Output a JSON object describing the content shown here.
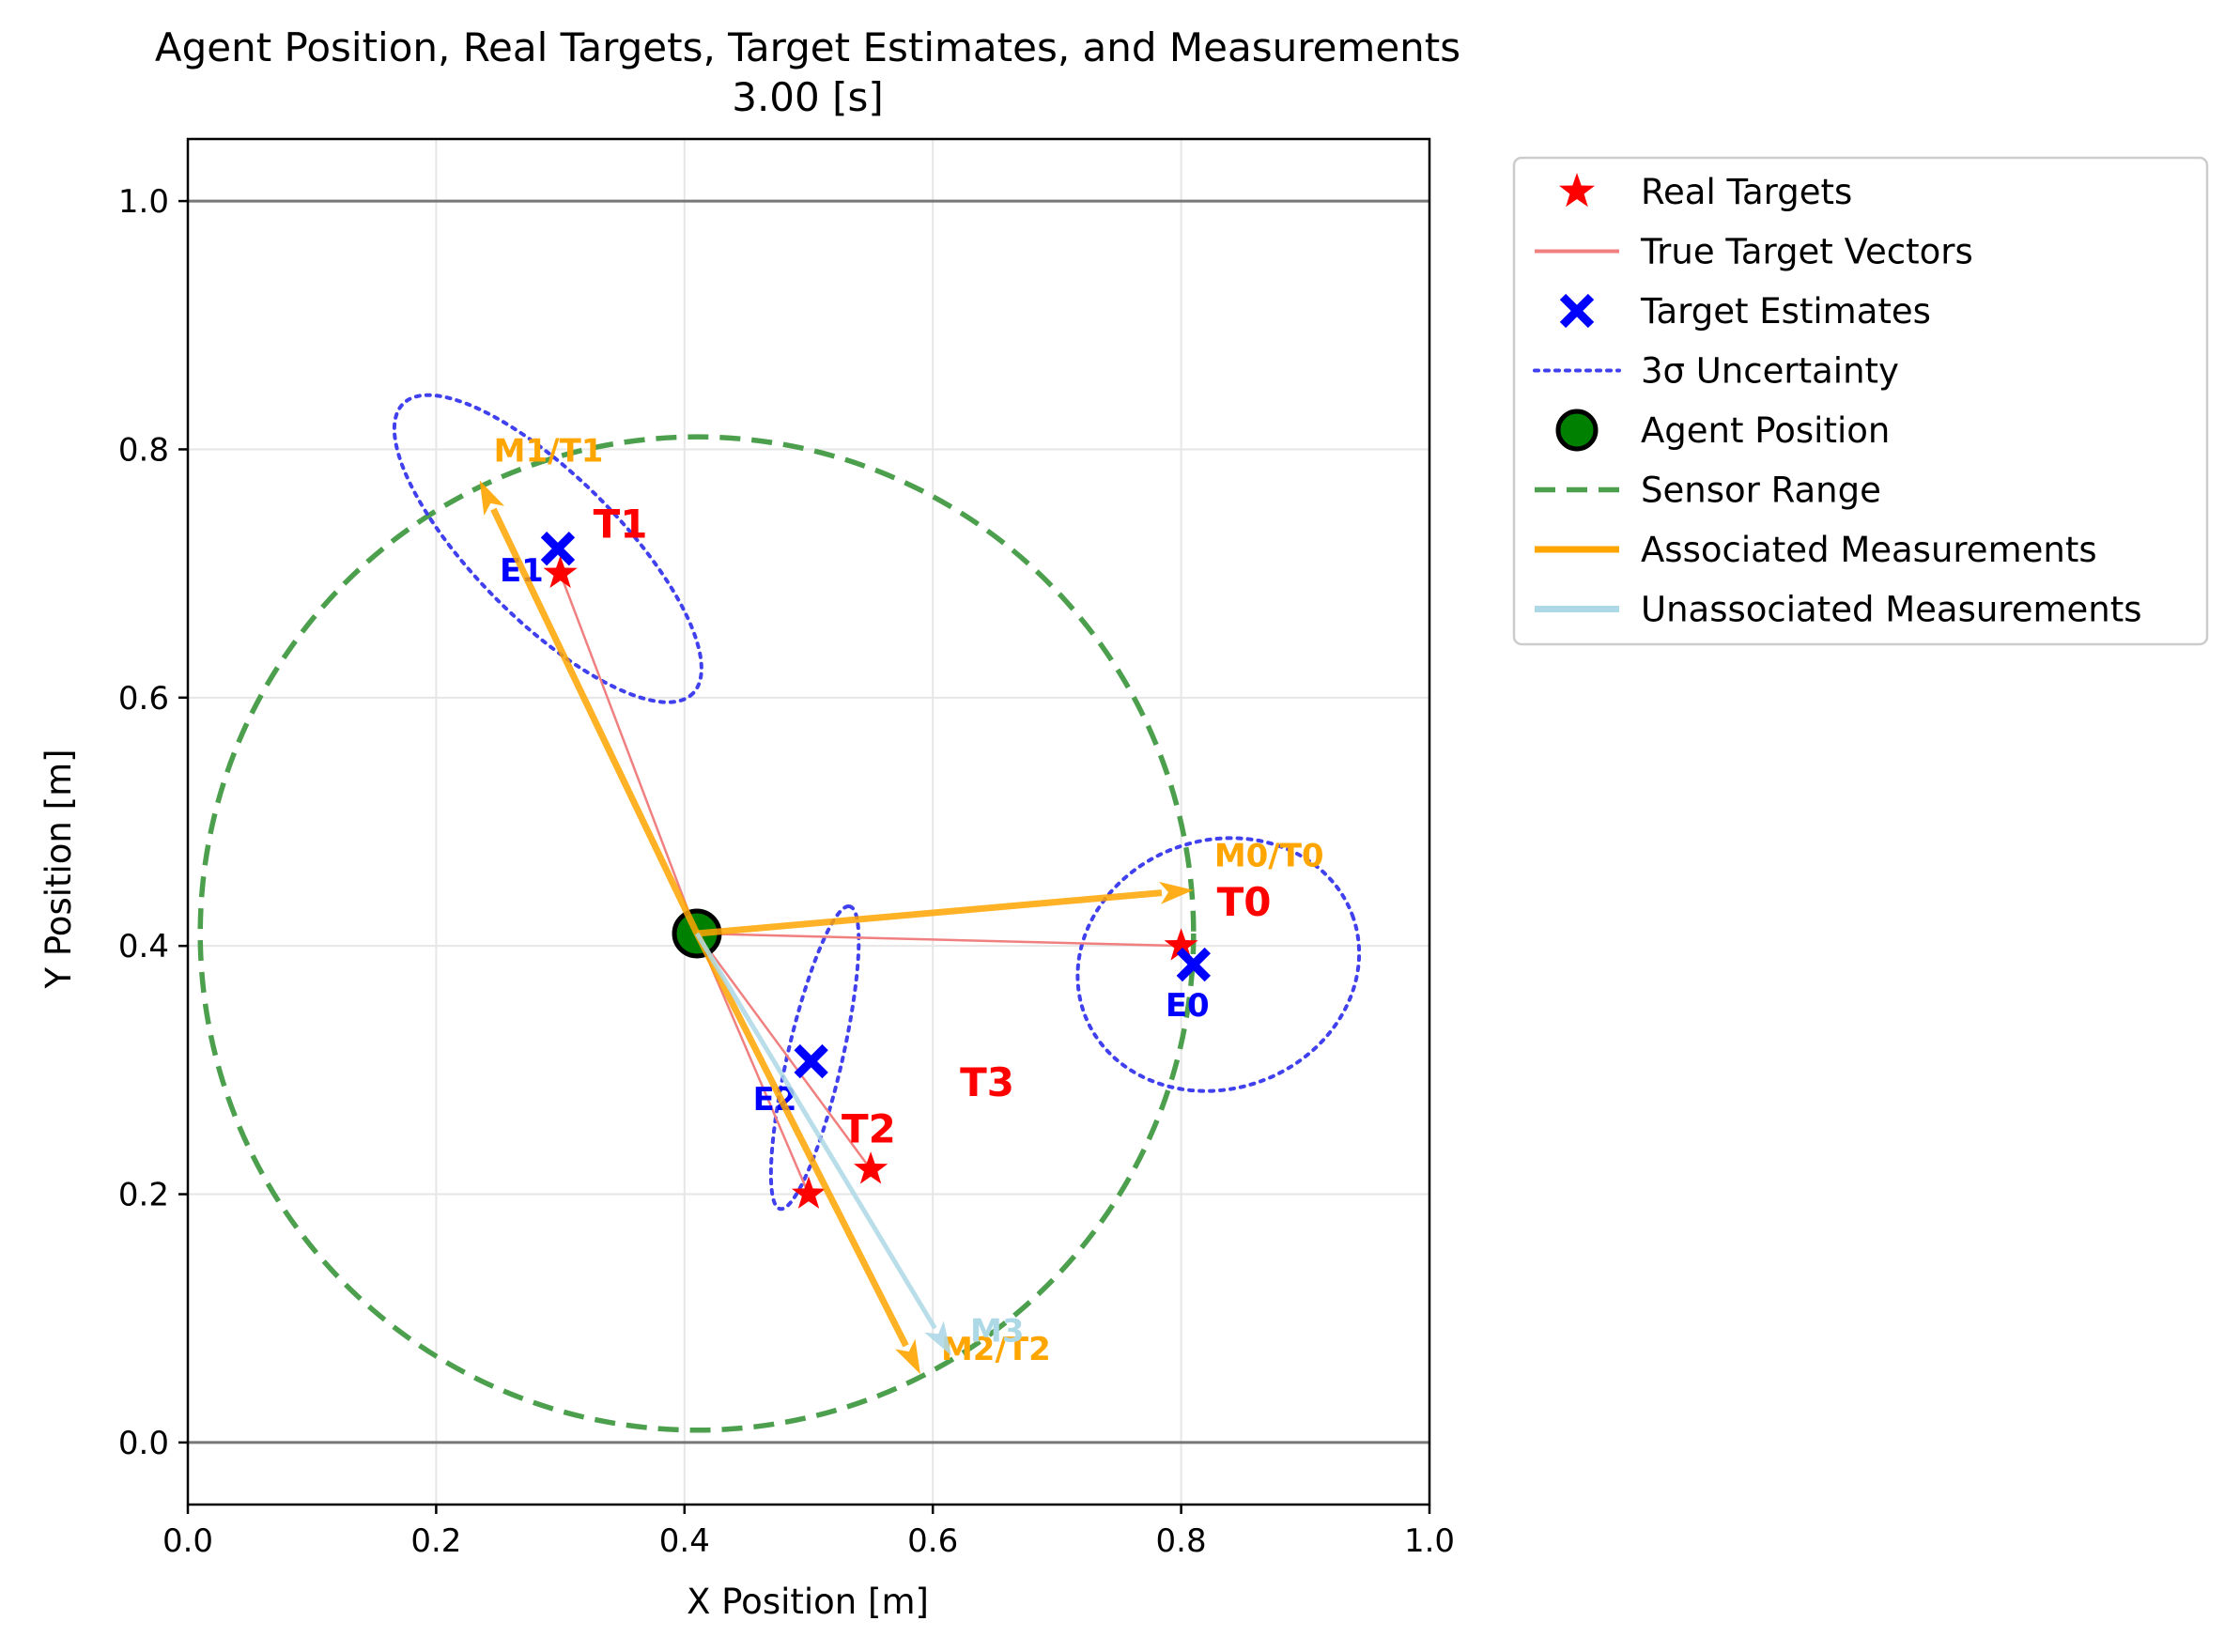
{
  "chart_data": {
    "type": "scatter",
    "title": "Agent Position, Real Targets, Target Estimates, and Measurements",
    "subtitle": "3.00 [s]",
    "xlabel": "X Position [m]",
    "ylabel": "Y Position [m]",
    "xlim": [
      0.0,
      1.0
    ],
    "ylim": [
      -0.05,
      1.05
    ],
    "xticks": [
      "0.0",
      "0.2",
      "0.4",
      "0.6",
      "0.8",
      "1.0"
    ],
    "yticks": [
      "0.0",
      "0.2",
      "0.4",
      "0.6",
      "0.8",
      "1.0"
    ],
    "grid": true,
    "hlines": [
      0.0,
      1.0
    ],
    "legend_position": "outside-right-top",
    "colors": {
      "real_target": "#ff0000",
      "true_vector": "#f08080",
      "estimate": "#0000ff",
      "uncertainty": "#4040ee",
      "agent": "#008000",
      "sensor_range": "#4c9f4c",
      "associated": "#ffa500",
      "unassociated": "#add8e6"
    },
    "agent": {
      "x": 0.41,
      "y": 0.41
    },
    "sensor_range": {
      "radius": 0.4
    },
    "real_targets": [
      {
        "label": "T0",
        "x": 0.8,
        "y": 0.4
      },
      {
        "label": "T1",
        "x": 0.3,
        "y": 0.7
      },
      {
        "label": "T2",
        "x": 0.5,
        "y": 0.2
      },
      {
        "label": "T3",
        "x": 0.55,
        "y": 0.22
      }
    ],
    "estimates": [
      {
        "label": "E0",
        "x": 0.81,
        "y": 0.385,
        "rx": 0.115,
        "ry": 0.1,
        "angle": -20,
        "cx": 0.83,
        "cy": 0.385
      },
      {
        "label": "E1",
        "x": 0.298,
        "y": 0.72,
        "rx": 0.165,
        "ry": 0.058,
        "angle": 45,
        "cx": 0.29,
        "cy": 0.72
      },
      {
        "label": "E2",
        "x": 0.502,
        "y": 0.307,
        "rx": 0.125,
        "ry": 0.022,
        "angle": -77,
        "cx": 0.505,
        "cy": 0.31
      }
    ],
    "measurements": [
      {
        "label": "M0/T0",
        "x": 0.81,
        "y": 0.445,
        "associated": true
      },
      {
        "label": "M1/T1",
        "x": 0.235,
        "y": 0.775,
        "associated": true
      },
      {
        "label": "M2/T2",
        "x": 0.59,
        "y": 0.055,
        "associated": true
      },
      {
        "label": "M3",
        "x": 0.615,
        "y": 0.07,
        "associated": false
      }
    ],
    "legend": [
      {
        "label": "Real Targets",
        "kind": "star",
        "color": "#ff0000"
      },
      {
        "label": "True Target Vectors",
        "kind": "line",
        "color": "#f08080"
      },
      {
        "label": "Target Estimates",
        "kind": "x",
        "color": "#0000ff"
      },
      {
        "label": "3σ Uncertainty",
        "kind": "dotted",
        "color": "#4040ee"
      },
      {
        "label": "Agent Position",
        "kind": "circle",
        "color": "#008000"
      },
      {
        "label": "Sensor Range",
        "kind": "dashed",
        "color": "#4c9f4c"
      },
      {
        "label": "Associated Measurements",
        "kind": "thick",
        "color": "#ffa500"
      },
      {
        "label": "Unassociated Measurements",
        "kind": "thick",
        "color": "#add8e6"
      }
    ]
  }
}
